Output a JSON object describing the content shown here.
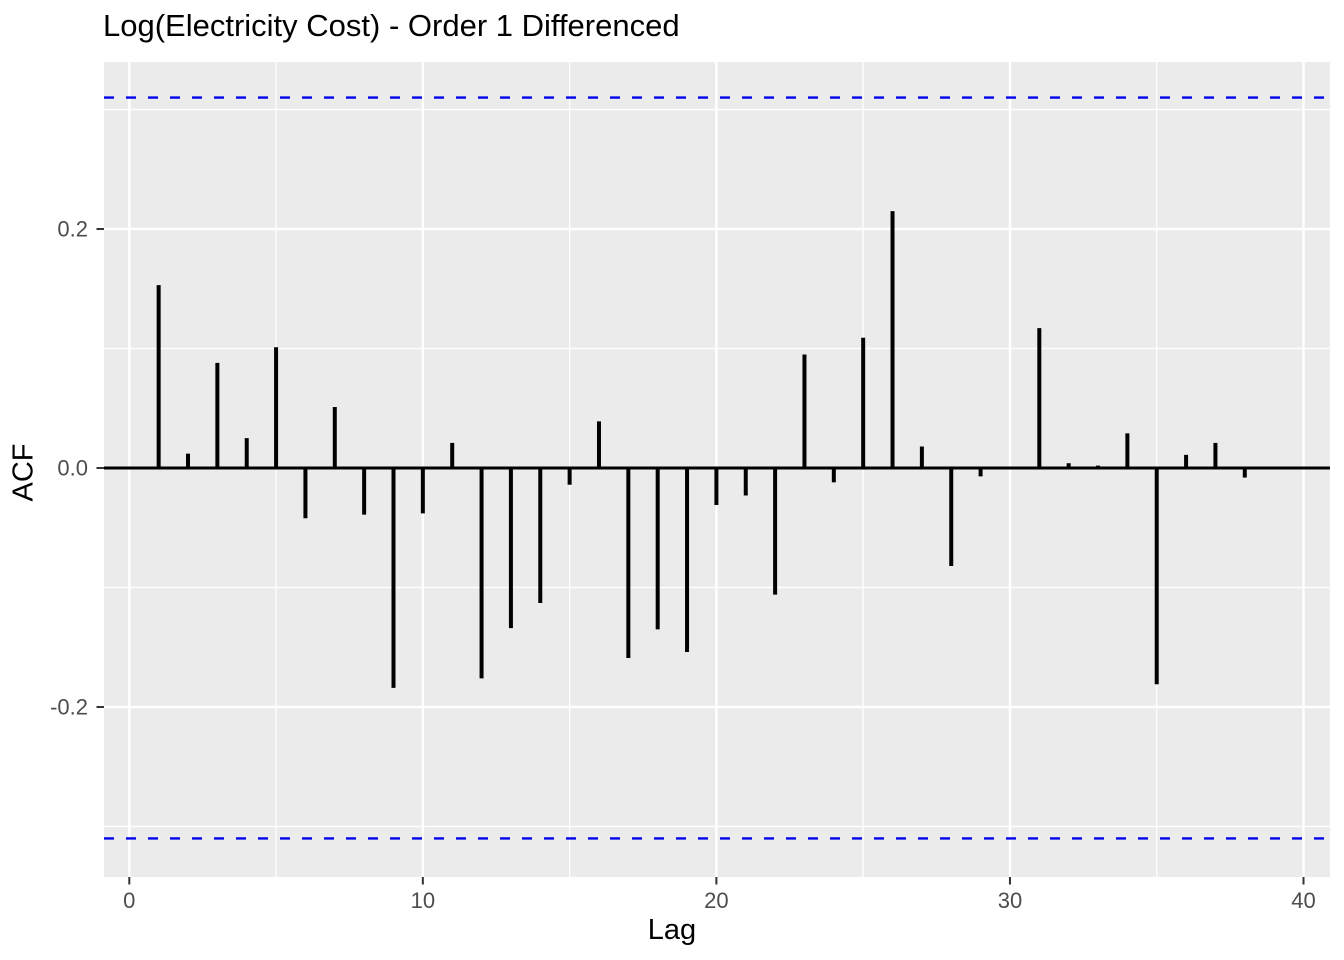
{
  "chart_data": {
    "type": "bar",
    "title": "Log(Electricity Cost) - Order 1 Differenced",
    "xlabel": "Lag",
    "ylabel": "ACF",
    "x": [
      1,
      2,
      3,
      4,
      5,
      6,
      7,
      8,
      9,
      10,
      11,
      12,
      13,
      14,
      15,
      16,
      17,
      18,
      19,
      20,
      21,
      22,
      23,
      24,
      25,
      26,
      27,
      28,
      29,
      30,
      31,
      32,
      33,
      34,
      35,
      36,
      37,
      38,
      39,
      40
    ],
    "values": [
      0.153,
      0.012,
      0.088,
      0.025,
      0.101,
      -0.042,
      0.051,
      -0.039,
      -0.184,
      -0.038,
      0.021,
      -0.176,
      -0.134,
      -0.113,
      -0.014,
      0.039,
      -0.159,
      -0.135,
      -0.154,
      -0.031,
      -0.023,
      -0.106,
      0.095,
      -0.012,
      0.109,
      0.215,
      0.018,
      -0.082,
      -0.007,
      0.001,
      0.117,
      0.004,
      0.002,
      0.029,
      -0.181,
      0.011,
      0.021,
      -0.008,
      0.0,
      0.0
    ],
    "confidence_bounds": [
      -0.31,
      0.31
    ],
    "confidence_line_style": "dashed",
    "x_ticks": [
      {
        "value": 0,
        "label": "0"
      },
      {
        "value": 10,
        "label": "10"
      },
      {
        "value": 20,
        "label": "20"
      },
      {
        "value": 30,
        "label": "30"
      },
      {
        "value": 40,
        "label": "40"
      }
    ],
    "y_ticks": [
      {
        "value": 0.2,
        "label": "0.2"
      },
      {
        "value": 0.0,
        "label": "0.0"
      },
      {
        "value": -0.2,
        "label": "-0.2"
      }
    ],
    "layout": {
      "xlim": [
        -0.86,
        40.9
      ],
      "ylim": [
        -0.342,
        0.34
      ],
      "x_minor_gridlines": [
        5,
        15,
        25,
        35
      ],
      "y_minor_gridlines": [
        0.3,
        0.1,
        -0.1,
        -0.3
      ],
      "grid": true,
      "legend": "none"
    },
    "colors": {
      "bar": "#000000",
      "zero_line": "#000000",
      "confidence_line": "#0000ee",
      "panel_background": "#ebebeb",
      "gridline": "#ffffff",
      "tick_label": "#4d4d4d",
      "tick_mark": "#333333",
      "title": "#000000",
      "axis_title": "#000000"
    }
  }
}
